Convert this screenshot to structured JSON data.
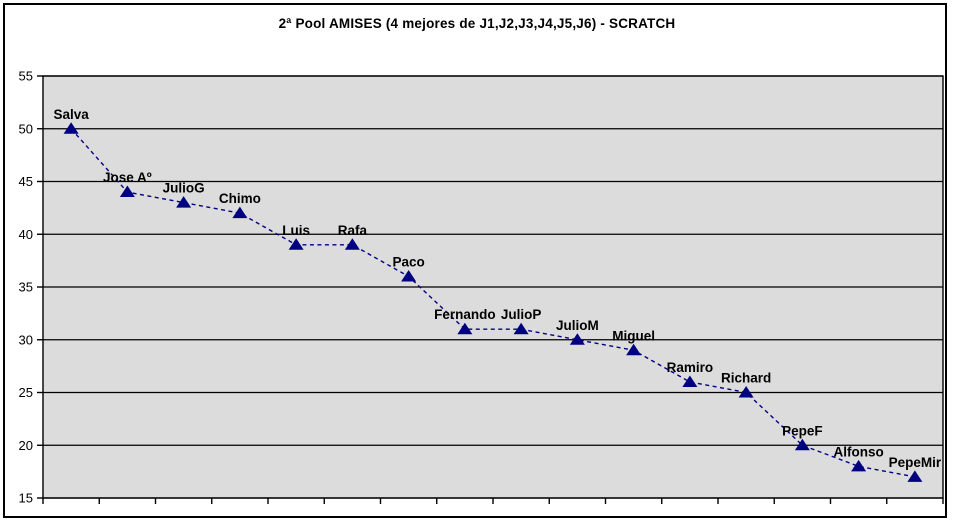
{
  "chart_data": {
    "type": "line",
    "title": "2ª Pool AMISES (4 mejores de J1,J2,J3,J4,J5,J6) - SCRATCH",
    "categories": [
      "Salva",
      "Jose Aº",
      "JulioG",
      "Chimo",
      "Luis",
      "Rafa",
      "Paco",
      "Fernando",
      "JulioP",
      "JulioM",
      "Miguel",
      "Ramiro",
      "Richard",
      "PepeF",
      "Alfonso",
      "PepeMir"
    ],
    "values": [
      50,
      44,
      43,
      42,
      39,
      39,
      36,
      31,
      31,
      30,
      29,
      26,
      25,
      20,
      18,
      17
    ],
    "xlabel": "",
    "ylabel": "",
    "ylim": [
      15,
      55
    ],
    "ytick_step": 5,
    "ytick_labels": [
      "15",
      "20",
      "25",
      "30",
      "35",
      "40",
      "45",
      "50",
      "55"
    ],
    "x_axis_category_labels_visible": false,
    "data_labels": "above-point",
    "grid": true,
    "legend": "none",
    "line_style": "dashed",
    "marker": "triangle",
    "colors": {
      "series": "#000080",
      "plot_bg": "#DCDCDC",
      "grid": "#000000",
      "axis": "#000000",
      "text": "#000000",
      "chart_bg": "#FFFFFF",
      "chart_border": "#000000"
    }
  }
}
